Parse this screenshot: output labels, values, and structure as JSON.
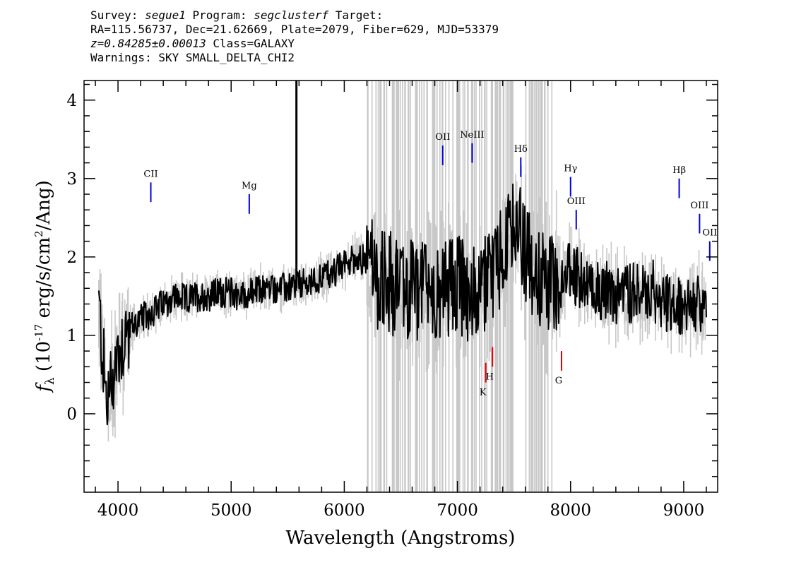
{
  "header": {
    "survey_label": "Survey: ",
    "survey_value": "segue1",
    "program_label": " Program: ",
    "program_value": "segclusterf",
    "target_label": " Target:",
    "line2": "RA=115.56737, Dec=21.62669, Plate=2079, Fiber=629, MJD=53379",
    "redshift": "z=0.84285±0.00013",
    "class_text": " Class=GALAXY",
    "warnings": "Warnings: SKY SMALL_DELTA_CHI2"
  },
  "chart_data": {
    "type": "line",
    "title": "",
    "xlabel": "Wavelength (Angstroms)",
    "ylabel_main": "f",
    "ylabel_sub": "λ",
    "ylabel_rest_a": " (10",
    "ylabel_exp1": "-17",
    "ylabel_rest_b": " erg/s/cm",
    "ylabel_exp2": "2",
    "ylabel_rest_c": "/Ang)",
    "xlim": [
      3700,
      9300
    ],
    "ylim": [
      -1.0,
      4.25
    ],
    "xticks": [
      4000,
      5000,
      6000,
      7000,
      8000,
      9000
    ],
    "xtick_labels": [
      "4000",
      "5000",
      "6000",
      "7000",
      "8000",
      "9000"
    ],
    "yticks": [
      0,
      1,
      2,
      3,
      4
    ],
    "ytick_labels": [
      "0",
      "1",
      "2",
      "3",
      "4"
    ],
    "wavelength_range": [
      3830,
      9200
    ],
    "colors": {
      "flux": "#000000",
      "error": "#c8c8c8",
      "emission": "#0000dd",
      "absorption": "#dd0000"
    },
    "series": [
      {
        "kind": "flux",
        "x": [
          3830,
          3900,
          4000,
          4100,
          4200,
          4300,
          4400,
          4500,
          4600,
          4700,
          4800,
          4900,
          5000,
          5100,
          5200,
          5300,
          5400,
          5500,
          5600,
          5700,
          5800,
          5900,
          6000,
          6100,
          6200,
          6300,
          6400,
          6500,
          6600,
          6700,
          6800,
          6900,
          7000,
          7100,
          7200,
          7300,
          7400,
          7500,
          7600,
          7700,
          7800,
          7900,
          8000,
          8100,
          8200,
          8300,
          8400,
          8500,
          8600,
          8700,
          8800,
          8900,
          9000,
          9100,
          9200
        ],
        "y": [
          1.4,
          0.1,
          0.8,
          1.1,
          1.2,
          1.3,
          1.4,
          1.5,
          1.45,
          1.5,
          1.5,
          1.55,
          1.55,
          1.5,
          1.55,
          1.6,
          1.6,
          1.6,
          1.65,
          1.65,
          1.75,
          1.8,
          1.9,
          2.0,
          1.95,
          1.7,
          1.7,
          1.5,
          1.6,
          1.55,
          1.5,
          1.6,
          1.7,
          1.5,
          1.6,
          1.7,
          2.0,
          2.4,
          2.1,
          1.7,
          1.65,
          1.7,
          1.8,
          1.7,
          1.6,
          1.6,
          1.5,
          1.55,
          1.5,
          1.6,
          1.5,
          1.4,
          1.3,
          1.4,
          1.4
        ]
      }
    ],
    "emission_lines": [
      {
        "label": "CII",
        "wave": 4290,
        "y_top": 2.95,
        "y_bottom": 2.7
      },
      {
        "label": "Mg",
        "wave": 5160,
        "y_top": 2.8,
        "y_bottom": 2.55
      },
      {
        "label": "OII",
        "wave": 6870,
        "y_top": 3.42,
        "y_bottom": 3.17
      },
      {
        "label": "NeIII",
        "wave": 7130,
        "y_top": 3.45,
        "y_bottom": 3.2
      },
      {
        "label": "Hδ",
        "wave": 7560,
        "y_top": 3.27,
        "y_bottom": 3.02
      },
      {
        "label": "Hγ",
        "wave": 8000,
        "y_top": 3.02,
        "y_bottom": 2.77
      },
      {
        "label": "OIII",
        "wave": 8050,
        "y_top": 2.6,
        "y_bottom": 2.35
      },
      {
        "label": "Hβ",
        "wave": 8960,
        "y_top": 3.0,
        "y_bottom": 2.75
      },
      {
        "label": "OIII",
        "wave": 9140,
        "y_top": 2.55,
        "y_bottom": 2.3
      },
      {
        "label": "OII",
        "wave": 9230,
        "y_top": 2.2,
        "y_bottom": 1.95
      }
    ],
    "absorption_lines": [
      {
        "label": "K",
        "wave": 7250,
        "y_top": 0.65,
        "y_bottom": 0.4
      },
      {
        "label": "H",
        "wave": 7310,
        "y_top": 0.85,
        "y_bottom": 0.6
      },
      {
        "label": "G",
        "wave": 7920,
        "y_top": 0.8,
        "y_bottom": 0.55
      }
    ]
  }
}
